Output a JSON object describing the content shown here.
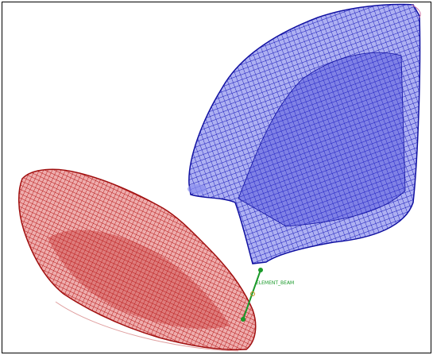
{
  "viewport": {
    "label": "ELEMENT_BEAM"
  }
}
